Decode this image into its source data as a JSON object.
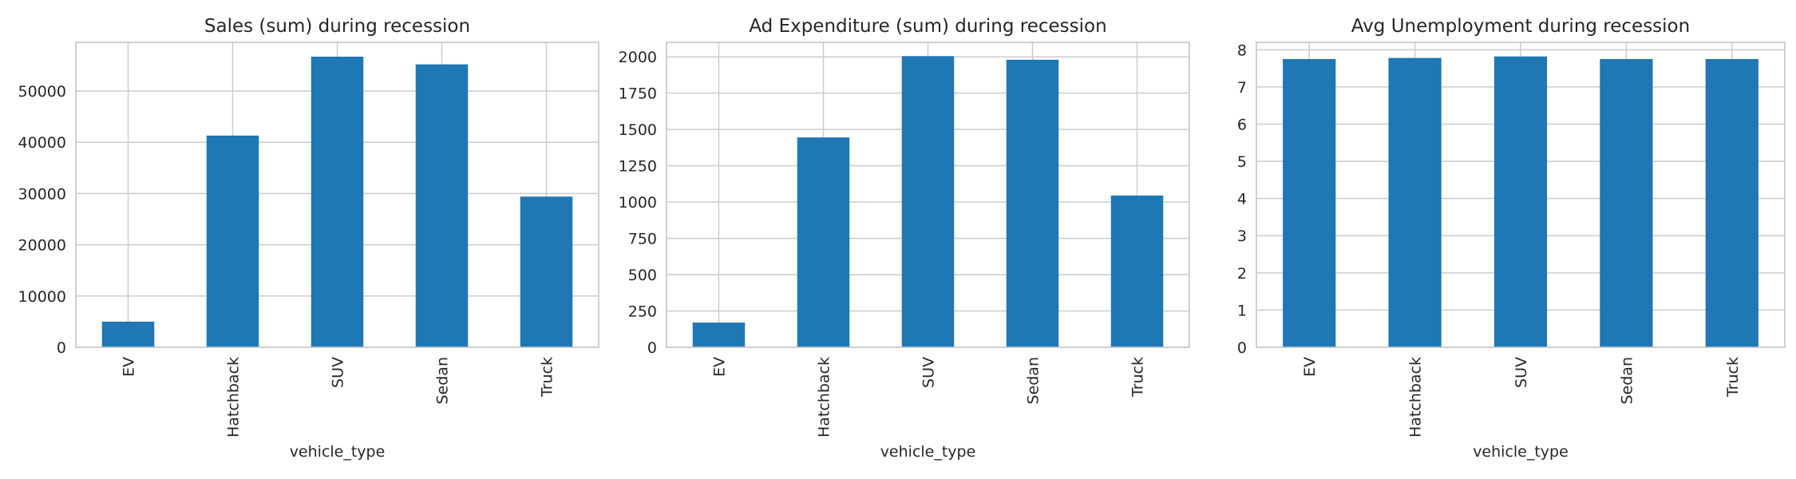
{
  "chart_data": [
    {
      "type": "bar",
      "title": "Sales (sum) during recession",
      "xlabel": "vehicle_type",
      "ylabel": "",
      "categories": [
        "EV",
        "Hatchback",
        "SUV",
        "Sedan",
        "Truck"
      ],
      "values": [
        5000,
        41300,
        56700,
        55200,
        29400
      ],
      "ylim": [
        0,
        59500
      ],
      "yticks": [
        0,
        10000,
        20000,
        30000,
        40000,
        50000
      ],
      "ytick_labels": [
        "0",
        "10000",
        "20000",
        "30000",
        "40000",
        "50000"
      ],
      "grid": true,
      "bar_color": "#1f77b4"
    },
    {
      "type": "bar",
      "title": "Ad Expenditure (sum) during recession",
      "xlabel": "vehicle_type",
      "ylabel": "",
      "categories": [
        "EV",
        "Hatchback",
        "SUV",
        "Sedan",
        "Truck"
      ],
      "values": [
        170,
        1445,
        2005,
        1980,
        1045
      ],
      "ylim": [
        0,
        2100
      ],
      "yticks": [
        0,
        250,
        500,
        750,
        1000,
        1250,
        1500,
        1750,
        2000
      ],
      "ytick_labels": [
        "0",
        "250",
        "500",
        "750",
        "1000",
        "1250",
        "1500",
        "1750",
        "2000"
      ],
      "grid": true,
      "bar_color": "#1f77b4"
    },
    {
      "type": "bar",
      "title": "Avg Unemployment during recession",
      "xlabel": "vehicle_type",
      "ylabel": "",
      "categories": [
        "EV",
        "Hatchback",
        "SUV",
        "Sedan",
        "Truck"
      ],
      "values": [
        7.75,
        7.78,
        7.82,
        7.75,
        7.75
      ],
      "ylim": [
        0,
        8.2
      ],
      "yticks": [
        0,
        1,
        2,
        3,
        4,
        5,
        6,
        7,
        8
      ],
      "ytick_labels": [
        "0",
        "1",
        "2",
        "3",
        "4",
        "5",
        "6",
        "7",
        "8"
      ],
      "grid": true,
      "bar_color": "#1f77b4"
    }
  ]
}
